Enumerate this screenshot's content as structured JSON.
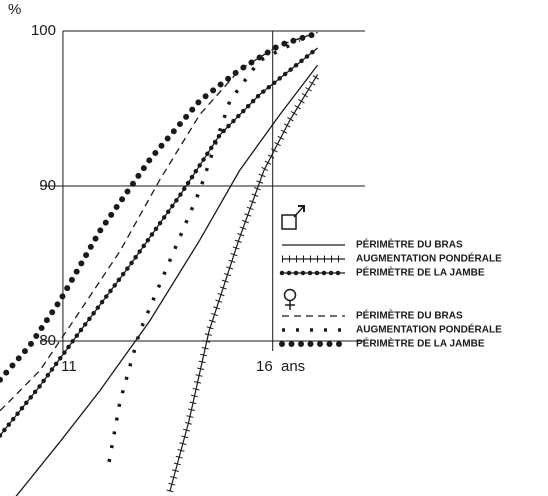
{
  "chart_data": {
    "type": "line",
    "y_label": "%",
    "x_label": "ans",
    "xlim": [
      9.5,
      18.2
    ],
    "ylim": [
      70,
      100
    ],
    "xticks": [
      11,
      16
    ],
    "yticks": [
      80,
      90,
      100
    ],
    "grid": true,
    "series": [
      {
        "name": "PÉRIMÈTRE DU BRAS",
        "group": "male",
        "style": "solid",
        "color": "#1a1a1a",
        "x": [
          9.86,
          10.93,
          11.88,
          13.07,
          14.26,
          15.21,
          16.17,
          17.07
        ],
        "values": [
          69.9,
          73.5,
          76.8,
          81.3,
          86.5,
          91.0,
          94.6,
          97.8
        ]
      },
      {
        "name": "AUGMENTATION PONDÉRALE",
        "group": "male",
        "style": "cross",
        "color": "#1a1a1a",
        "x": [
          13.55,
          14.0,
          14.48,
          15.19,
          15.79,
          16.4,
          17.07
        ],
        "values": [
          70.3,
          74.8,
          80.6,
          86.5,
          91.0,
          94.2,
          97.2
        ]
      },
      {
        "name": "PÉRIMÈTRE DE LA JAMBE",
        "group": "male",
        "style": "dot-line",
        "color": "#1a1a1a",
        "x": [
          9.5,
          10.45,
          11.4,
          12.6,
          13.79,
          14.74,
          15.69,
          17.07
        ],
        "values": [
          73.9,
          77.1,
          80.6,
          84.9,
          89.4,
          93.3,
          95.9,
          98.9
        ]
      },
      {
        "name": "PÉRIMÈTRE DU BRAS",
        "group": "female",
        "style": "dashed",
        "color": "#1a1a1a",
        "x": [
          9.5,
          10.45,
          11.4,
          12.36,
          13.31,
          14.26,
          15.21,
          16.17,
          17.07
        ],
        "values": [
          75.5,
          78.1,
          81.9,
          85.8,
          90.4,
          94.6,
          97.5,
          99.1,
          99.9
        ]
      },
      {
        "name": "AUGMENTATION PONDÉRALE",
        "group": "female",
        "style": "plus",
        "color": "#1a1a1a",
        "x": [
          12.1,
          12.36,
          12.83,
          13.55,
          14.26,
          14.98,
          15.69,
          16.64
        ],
        "values": [
          72.2,
          76.1,
          80.6,
          85.2,
          89.7,
          95.5,
          98.1,
          99.4
        ]
      },
      {
        "name": "PÉRIMÈTRE DE LA JAMBE",
        "group": "female",
        "style": "dots",
        "color": "#1a1a1a",
        "x": [
          9.5,
          10.21,
          10.93,
          11.88,
          13.07,
          14.26,
          15.21,
          16.17,
          17.12
        ],
        "values": [
          77.5,
          79.7,
          82.6,
          87.1,
          91.7,
          95.5,
          97.5,
          99.1,
          99.9
        ]
      }
    ]
  }
}
